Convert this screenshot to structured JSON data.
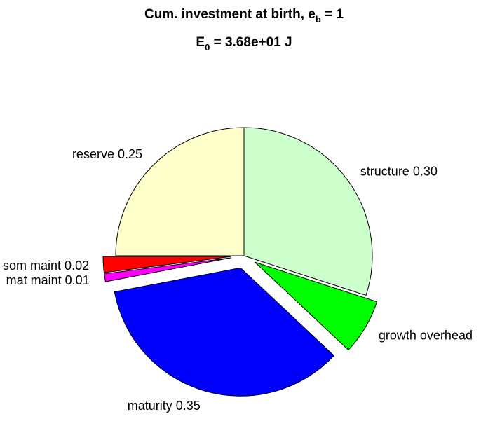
{
  "chart_data": {
    "type": "pie",
    "title": {
      "line1_prefix": "Cum. investment at birth, e",
      "line1_sub": "b",
      "line1_suffix": " = 1",
      "line2_prefix": "E",
      "line2_sub": "0",
      "line2_suffix": " = 3.68e+01 J"
    },
    "slices": [
      {
        "label": "structure 0.30",
        "value": 0.3,
        "color": "#ccffcc",
        "exploded": false
      },
      {
        "label": "growth overhead",
        "value": 0.07,
        "color": "#00ff00",
        "exploded": true
      },
      {
        "label": "maturity 0.35",
        "value": 0.35,
        "color": "#0000ff",
        "exploded": true
      },
      {
        "label": "mat maint 0.01",
        "value": 0.01,
        "color": "#ff00ff",
        "exploded": true
      },
      {
        "label": "som maint 0.02",
        "value": 0.02,
        "color": "#ff0000",
        "exploded": true
      },
      {
        "label": "reserve 0.25",
        "value": 0.25,
        "color": "#ffffcc",
        "exploded": false
      }
    ],
    "start_angle_deg": 90,
    "direction": "clockwise",
    "legend": "none"
  }
}
